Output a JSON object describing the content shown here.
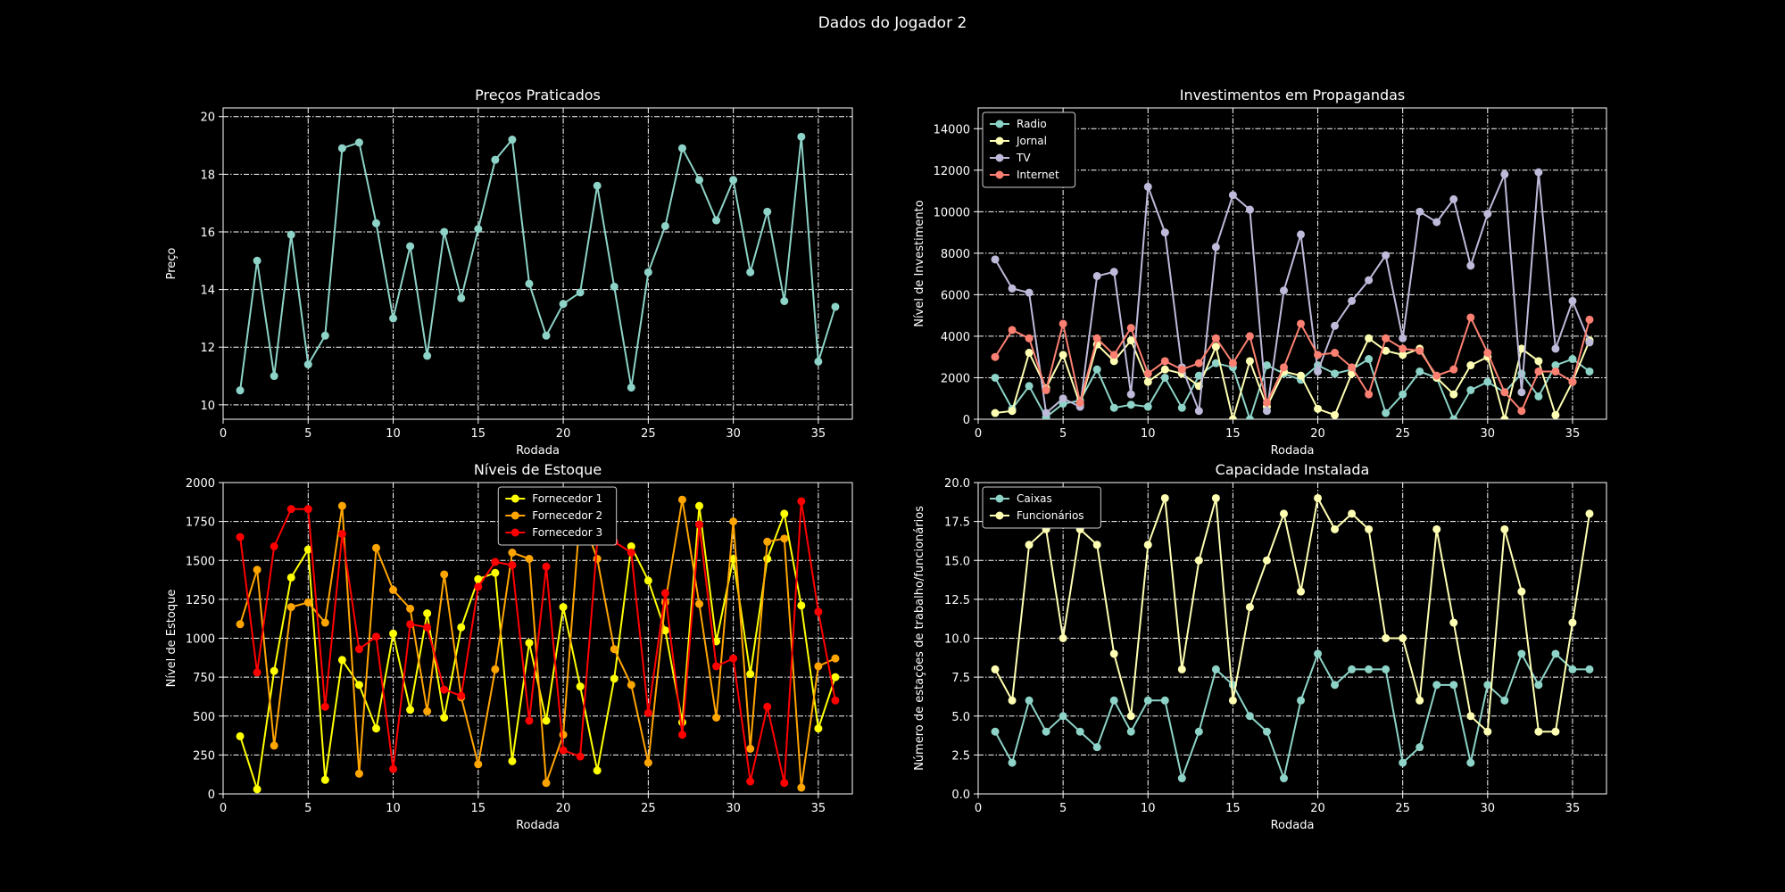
{
  "page_title": "Dados do Jogador 2",
  "colors": {
    "background": "#000000",
    "foreground": "#ffffff"
  },
  "chart_data": [
    {
      "type": "line",
      "title": "Preços Praticados",
      "xlabel": "Rodada",
      "ylabel": "Preço",
      "xlim": [
        0,
        37
      ],
      "ylim": [
        9.5,
        20.3
      ],
      "xticks": [
        0,
        5,
        10,
        15,
        20,
        25,
        30,
        35
      ],
      "yticks": [
        10,
        12,
        14,
        16,
        18,
        20
      ],
      "ytick_labels": [
        "10",
        "12",
        "14",
        "16",
        "18",
        "20"
      ],
      "grid": true,
      "legend": "none",
      "x": [
        1,
        2,
        3,
        4,
        5,
        6,
        7,
        8,
        9,
        10,
        11,
        12,
        13,
        14,
        15,
        16,
        17,
        18,
        19,
        20,
        21,
        22,
        23,
        24,
        25,
        26,
        27,
        28,
        29,
        30,
        31,
        32,
        33,
        34,
        35,
        36
      ],
      "series": [
        {
          "color": "#8dd3c7",
          "values": [
            10.5,
            15.0,
            11.0,
            15.9,
            11.4,
            12.4,
            18.9,
            19.1,
            16.3,
            13.0,
            15.5,
            11.7,
            16.0,
            13.7,
            16.1,
            18.5,
            19.2,
            14.2,
            12.4,
            13.5,
            13.9,
            17.6,
            14.1,
            10.6,
            14.6,
            16.2,
            18.9,
            17.8,
            16.4,
            17.8,
            14.6,
            16.7,
            13.6,
            19.3,
            11.5,
            13.4
          ]
        }
      ]
    },
    {
      "type": "line",
      "title": "Investimentos em Propagandas",
      "xlabel": "Rodada",
      "ylabel": "Nível de Investimento",
      "xlim": [
        0,
        37
      ],
      "ylim": [
        0,
        15000
      ],
      "xticks": [
        0,
        5,
        10,
        15,
        20,
        25,
        30,
        35
      ],
      "yticks": [
        0,
        2000,
        4000,
        6000,
        8000,
        10000,
        12000,
        14000
      ],
      "ytick_labels": [
        "0",
        "2000",
        "4000",
        "6000",
        "8000",
        "10000",
        "12000",
        "14000"
      ],
      "grid": true,
      "legend": "upper-left",
      "x": [
        1,
        2,
        3,
        4,
        5,
        6,
        7,
        8,
        9,
        10,
        11,
        12,
        13,
        14,
        15,
        16,
        17,
        18,
        19,
        20,
        21,
        22,
        23,
        24,
        25,
        26,
        27,
        28,
        29,
        30,
        31,
        32,
        33,
        34,
        35,
        36
      ],
      "series": [
        {
          "name": "Radio",
          "color": "#8dd3c7",
          "values": [
            2000,
            500,
            1600,
            100,
            750,
            900,
            2400,
            550,
            700,
            600,
            2000,
            550,
            2100,
            2700,
            2500,
            0,
            2600,
            2200,
            1900,
            2600,
            2200,
            2400,
            2900,
            300,
            1200,
            2300,
            2000,
            0,
            1400,
            1800,
            1300,
            2200,
            1100,
            2600,
            2900,
            2300
          ]
        },
        {
          "name": "Jornal",
          "color": "#ffffb3",
          "values": [
            300,
            400,
            3200,
            1500,
            3100,
            700,
            3600,
            2800,
            3800,
            1800,
            2400,
            2200,
            1600,
            3500,
            0,
            2800,
            600,
            2300,
            2100,
            500,
            200,
            2200,
            3900,
            3300,
            3100,
            3400,
            2000,
            1200,
            2600,
            3000,
            0,
            3400,
            2800,
            200,
            1800,
            3800
          ]
        },
        {
          "name": "TV",
          "color": "#bebada",
          "values": [
            7700,
            6300,
            6100,
            300,
            1000,
            600,
            6900,
            7100,
            1200,
            11200,
            9000,
            2500,
            400,
            8300,
            10800,
            10100,
            400,
            6200,
            8900,
            2300,
            4500,
            5700,
            6700,
            7900,
            3900,
            10000,
            9500,
            10600,
            7400,
            9900,
            11800,
            1300,
            11900,
            3400,
            5700,
            3700
          ]
        },
        {
          "name": "Internet",
          "color": "#fb8072",
          "values": [
            3000,
            4300,
            3900,
            1400,
            4600,
            800,
            3900,
            3100,
            4400,
            2200,
            2800,
            2400,
            2700,
            3900,
            2700,
            4000,
            800,
            2500,
            4600,
            3100,
            3200,
            2500,
            1200,
            3900,
            3400,
            3300,
            2100,
            2400,
            4900,
            3200,
            1300,
            400,
            2300,
            2300,
            1800,
            4800
          ]
        }
      ]
    },
    {
      "type": "line",
      "title": "Níveis de Estoque",
      "xlabel": "Rodada",
      "ylabel": "Nível de Estoque",
      "xlim": [
        0,
        37
      ],
      "ylim": [
        0,
        2000
      ],
      "xticks": [
        0,
        5,
        10,
        15,
        20,
        25,
        30,
        35
      ],
      "yticks": [
        0,
        250,
        500,
        750,
        1000,
        1250,
        1500,
        1750,
        2000
      ],
      "ytick_labels": [
        "0",
        "250",
        "500",
        "750",
        "1000",
        "1250",
        "1500",
        "1750",
        "2000"
      ],
      "grid": true,
      "legend": "upper-center",
      "x": [
        1,
        2,
        3,
        4,
        5,
        6,
        7,
        8,
        9,
        10,
        11,
        12,
        13,
        14,
        15,
        16,
        17,
        18,
        19,
        20,
        21,
        22,
        23,
        24,
        25,
        26,
        27,
        28,
        29,
        30,
        31,
        32,
        33,
        34,
        35,
        36
      ],
      "series": [
        {
          "name": "Fornecedor 1",
          "color": "#ffff00",
          "values": [
            370,
            30,
            790,
            1390,
            1570,
            90,
            860,
            700,
            420,
            1030,
            540,
            1160,
            490,
            1070,
            1380,
            1420,
            210,
            970,
            470,
            1200,
            690,
            150,
            740,
            1590,
            1370,
            1050,
            460,
            1850,
            980,
            1510,
            770,
            1510,
            1800,
            1210,
            420,
            750
          ]
        },
        {
          "name": "Fornecedor 2",
          "color": "#ffa500",
          "values": [
            1090,
            1440,
            310,
            1200,
            1230,
            1100,
            1850,
            130,
            1580,
            1310,
            1190,
            530,
            1410,
            620,
            190,
            800,
            1550,
            1510,
            70,
            380,
            1810,
            1510,
            930,
            700,
            200,
            1230,
            1890,
            1220,
            490,
            1750,
            290,
            1620,
            1640,
            40,
            820,
            870
          ]
        },
        {
          "name": "Fornecedor 3",
          "color": "#ff0000",
          "values": [
            1650,
            780,
            1590,
            1830,
            1830,
            560,
            1670,
            930,
            1010,
            160,
            1090,
            1070,
            670,
            630,
            1330,
            1490,
            1470,
            470,
            1460,
            280,
            240,
            1620,
            1620,
            1550,
            520,
            1290,
            380,
            1730,
            820,
            870,
            80,
            560,
            70,
            1880,
            1170,
            600
          ]
        }
      ]
    },
    {
      "type": "line",
      "title": "Capacidade Instalada",
      "xlabel": "Rodada",
      "ylabel": "Número de estações de trabalho/funcionários",
      "xlim": [
        0,
        37
      ],
      "ylim": [
        0,
        20
      ],
      "xticks": [
        0,
        5,
        10,
        15,
        20,
        25,
        30,
        35
      ],
      "yticks": [
        0,
        2.5,
        5,
        7.5,
        10,
        12.5,
        15,
        17.5,
        20
      ],
      "ytick_labels": [
        "0.0",
        "2.5",
        "5.0",
        "7.5",
        "10.0",
        "12.5",
        "15.0",
        "17.5",
        "20.0"
      ],
      "grid": true,
      "legend": "upper-left",
      "x": [
        1,
        2,
        3,
        4,
        5,
        6,
        7,
        8,
        9,
        10,
        11,
        12,
        13,
        14,
        15,
        16,
        17,
        18,
        19,
        20,
        21,
        22,
        23,
        24,
        25,
        26,
        27,
        28,
        29,
        30,
        31,
        32,
        33,
        34,
        35,
        36
      ],
      "series": [
        {
          "name": "Caixas",
          "color": "#8dd3c7",
          "values": [
            4,
            2,
            6,
            4,
            5,
            4,
            3,
            6,
            4,
            6,
            6,
            1,
            4,
            8,
            7,
            5,
            4,
            1,
            6,
            9,
            7,
            8,
            8,
            8,
            2,
            3,
            7,
            7,
            2,
            7,
            6,
            9,
            7,
            9,
            8,
            8
          ]
        },
        {
          "name": "Funcionários",
          "color": "#ffffb3",
          "values": [
            8,
            6,
            16,
            17,
            10,
            17,
            16,
            9,
            5,
            16,
            19,
            8,
            15,
            19,
            6,
            12,
            15,
            18,
            13,
            19,
            17,
            18,
            17,
            10,
            10,
            6,
            17,
            11,
            5,
            4,
            17,
            13,
            4,
            4,
            11,
            18
          ]
        }
      ]
    }
  ]
}
